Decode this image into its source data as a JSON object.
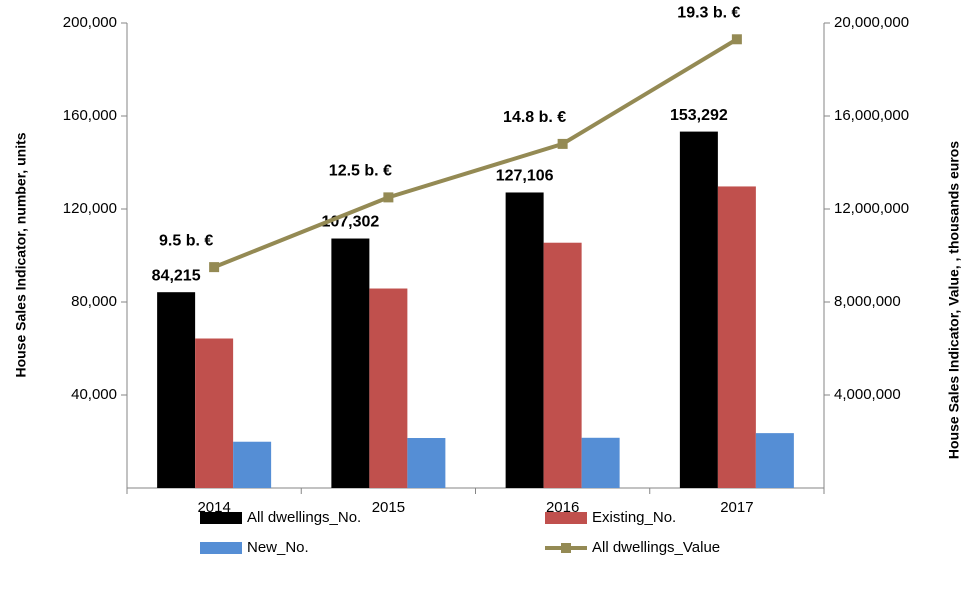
{
  "chart_data": {
    "type": "bar",
    "categories": [
      "2014",
      "2015",
      "2016",
      "2017"
    ],
    "series": [
      {
        "name": "All dwellings_No.",
        "color": "#000000",
        "values": [
          84215,
          107302,
          127106,
          153292
        ],
        "value_labels": [
          "84,215",
          "107,302",
          "127,106",
          "153,292"
        ]
      },
      {
        "name": "Existing_No.",
        "color": "#c0504d",
        "values": [
          64300,
          85800,
          105500,
          129700
        ]
      },
      {
        "name": "New_No.",
        "color": "#558ed5",
        "values": [
          19900,
          21500,
          21600,
          23600
        ]
      },
      {
        "name": "All dwellings_Value",
        "color": "#948a54",
        "type": "line",
        "axis": "y2",
        "values": [
          9500000,
          12500000,
          14800000,
          19300000
        ],
        "value_labels": [
          "9.5 b. €",
          "12.5 b. €",
          "14.8 b. €",
          "19.3 b. €"
        ]
      }
    ],
    "y_label": "House Sales Indicator, number, units",
    "y2_label": "House Sales Indicator, Value, , thousands euros",
    "ylim": [
      0,
      200000
    ],
    "yticks": [
      {
        "value": 40000,
        "label": "40,000"
      },
      {
        "value": 80000,
        "label": "80,000"
      },
      {
        "value": 120000,
        "label": "120,000"
      },
      {
        "value": 160000,
        "label": "160,000"
      },
      {
        "value": 200000,
        "label": "200,000"
      }
    ],
    "y2lim": [
      0,
      20000000
    ],
    "y2ticks": [
      {
        "value": 4000000,
        "label": "4,000,000"
      },
      {
        "value": 8000000,
        "label": "8,000,000"
      },
      {
        "value": 12000000,
        "label": "12,000,000"
      },
      {
        "value": 16000000,
        "label": "16,000,000"
      },
      {
        "value": 20000000,
        "label": "20,000,000"
      }
    ]
  }
}
